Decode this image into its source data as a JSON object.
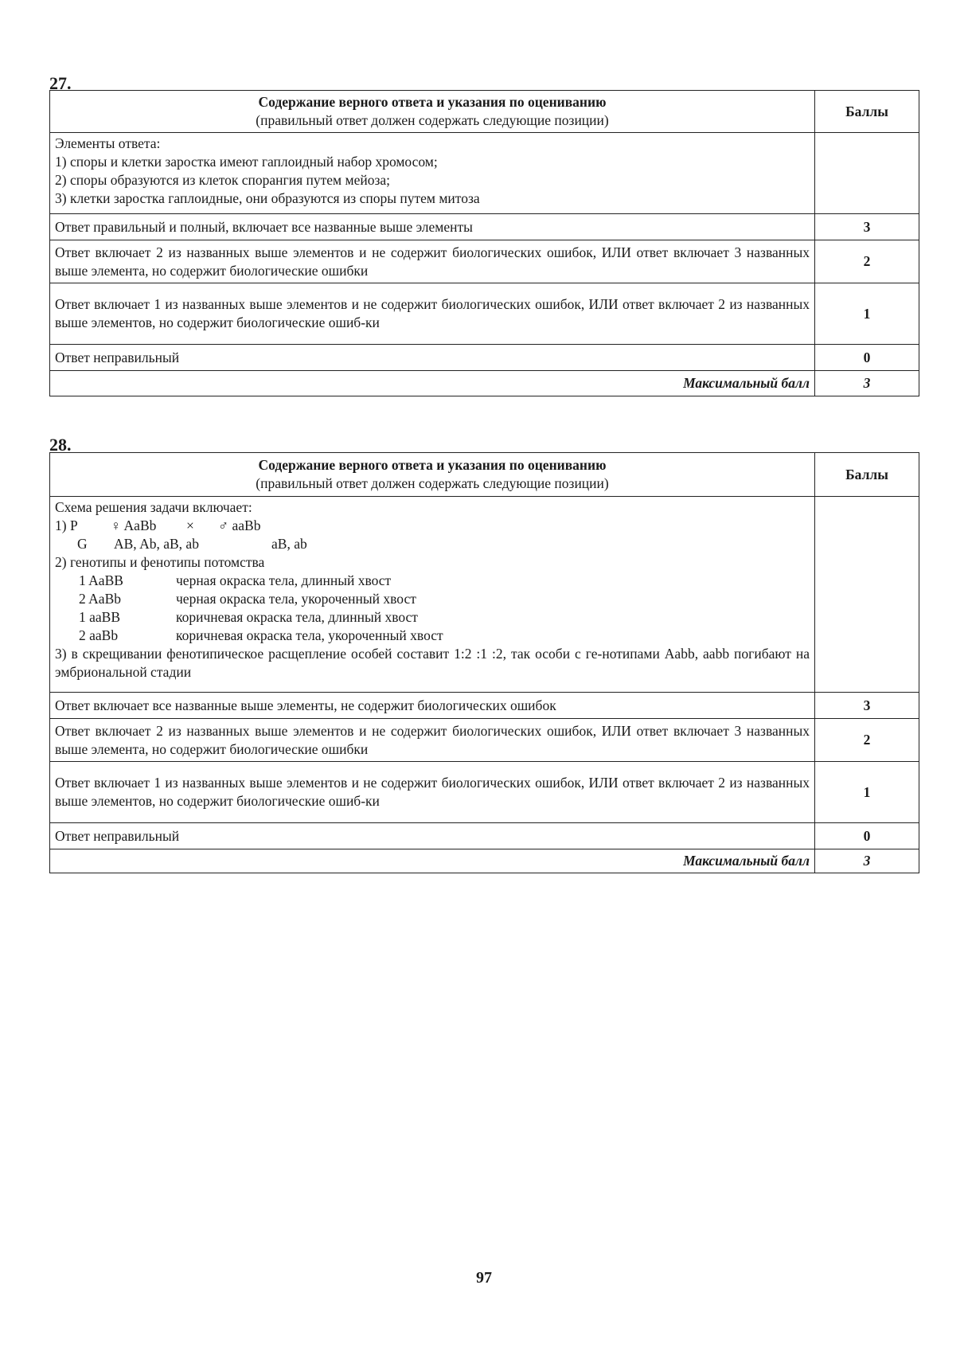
{
  "questions": [
    {
      "number": "27.",
      "header": {
        "title": "Содержание верного ответа и указания по оцениванию",
        "subtitle": "(правильный ответ должен содержать следующие позиции)",
        "points_col": "Баллы"
      },
      "elements": [
        "Элементы ответа:",
        "1) споры и клетки заростка имеют гаплоидный набор хромосом;",
        "2) споры образуются из клеток спорангия путем мейоза;",
        "3) клетки заростка гаплоидные, они образуются из споры путем митоза"
      ],
      "criteria": [
        {
          "text": "Ответ правильный и полный, включает все названные выше элементы",
          "points": "3"
        },
        {
          "text": "Ответ включает 2 из названных выше элементов и не содержит биологических ошибок, ИЛИ ответ включает 3 названных выше элемента, но содержит биологические ошибки",
          "points": "2"
        },
        {
          "text": "Ответ включает 1 из названных выше элементов и не содержит биологических ошибок, ИЛИ ответ включает 2 из названных выше элементов, но содержит биологические ошиб-ки",
          "points": "1"
        },
        {
          "text": "Ответ неправильный",
          "points": "0"
        }
      ],
      "max": {
        "label": "Максимальный балл",
        "value": "3"
      }
    },
    {
      "number": "28.",
      "header": {
        "title": "Содержание верного ответа и указания по оцениванию",
        "subtitle": "(правильный ответ должен содержать следующие позиции)",
        "points_col": "Баллы"
      },
      "scheme": {
        "intro": "Схема решения задачи включает:",
        "p_prefix": "1) P",
        "female": "♀ AaBb",
        "cross": "×",
        "male": "♂ aaBb",
        "g_prefix": "G",
        "g_female": "AB, Ab, aB, ab",
        "g_male": "aB, ab",
        "item2": "2) генотипы и фенотипы потомства",
        "offspring": [
          {
            "genotype": "1 AaBB",
            "phenotype": "черная окраска тела, длинный хвост"
          },
          {
            "genotype": "2 AaBb",
            "phenotype": "черная окраска тела, укороченный хвост"
          },
          {
            "genotype": "1 aaBB",
            "phenotype": "коричневая окраска тела, длинный хвост"
          },
          {
            "genotype": "2 aaBb",
            "phenotype": "коричневая окраска тела, укороченный хвост"
          }
        ],
        "item3": "3) в скрещивании фенотипическое расщепление особей составит 1:2 :1 :2, так особи с ге-нотипами Aabb, aabb погибают на эмбриональной стадии"
      },
      "criteria": [
        {
          "text": "Ответ включает все названные выше элементы, не содержит биологических ошибок",
          "points": "3"
        },
        {
          "text": "Ответ включает 2 из названных выше элементов и не содержит биологических ошибок, ИЛИ ответ включает 3 названных выше элемента, но содержит биологические ошибки",
          "points": "2"
        },
        {
          "text": "Ответ включает 1 из названных выше элементов и не содержит биологических ошибок, ИЛИ ответ включает 2 из названных выше элементов, но содержит биологические ошиб-ки",
          "points": "1"
        },
        {
          "text": "Ответ неправильный",
          "points": "0"
        }
      ],
      "max": {
        "label": "Максимальный балл",
        "value": "3"
      }
    }
  ],
  "page_number": "97"
}
